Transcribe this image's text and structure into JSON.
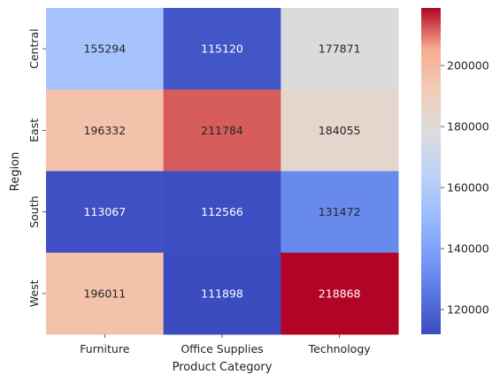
{
  "chart_data": {
    "type": "heatmap",
    "title": "",
    "xlabel": "Product Category",
    "ylabel": "Region",
    "x_categories": [
      "Furniture",
      "Office Supplies",
      "Technology"
    ],
    "y_categories": [
      "Central",
      "East",
      "South",
      "West"
    ],
    "values": [
      [
        155294,
        115120,
        177871
      ],
      [
        196332,
        211784,
        184055
      ],
      [
        113067,
        112566,
        131472
      ],
      [
        196011,
        111898,
        218868
      ]
    ],
    "colormap": "coolwarm",
    "color_range": [
      111898,
      218868
    ],
    "colorbar_ticks": [
      "120000",
      "140000",
      "160000",
      "180000",
      "200000"
    ],
    "colorbar_tick_values": [
      120000,
      140000,
      160000,
      180000,
      200000
    ]
  }
}
